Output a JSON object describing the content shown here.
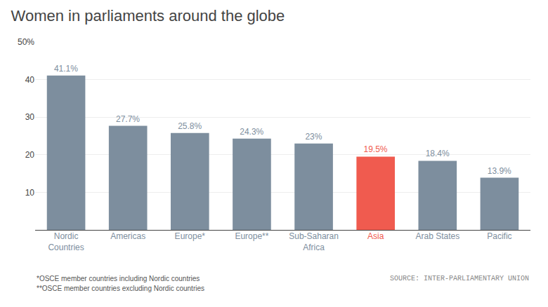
{
  "chart_data": {
    "type": "bar",
    "title": "Women in parliaments around the globe",
    "categories": [
      "Nordic\nCountries",
      "Americas",
      "Europe*",
      "Europe**",
      "Sub-Saharan\nAfrica",
      "Asia",
      "Arab States",
      "Pacific"
    ],
    "values": [
      41.1,
      27.7,
      25.8,
      24.3,
      23.0,
      19.5,
      18.4,
      13.9
    ],
    "value_labels": [
      "41.1%",
      "27.7%",
      "25.8%",
      "24.3%",
      "23%",
      "19.5%",
      "18.4%",
      "13.9%"
    ],
    "colors": [
      "#7d8e9e",
      "#7d8e9e",
      "#7d8e9e",
      "#7d8e9e",
      "#7d8e9e",
      "#f05b4f",
      "#7d8e9e",
      "#7d8e9e"
    ],
    "ylim": [
      0,
      50
    ],
    "yticks": [
      10,
      20,
      30,
      40,
      {
        "value": 50,
        "label": "50%"
      }
    ],
    "grid": true,
    "data_labels": true,
    "annotations": [
      "*OSCE member countries including Nordic countries",
      "**OSCE member countries excluding Nordic countries",
      "SOURCE: INTER-PARLIAMENTARY UNION"
    ]
  }
}
